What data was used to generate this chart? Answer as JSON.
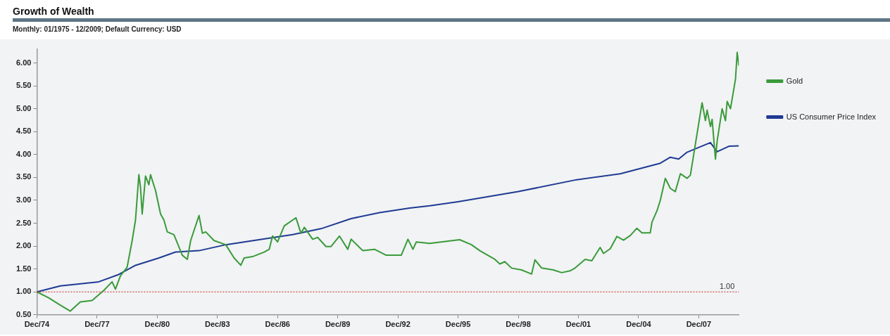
{
  "chart_data": {
    "type": "line",
    "title": "Growth of Wealth",
    "subtitle": "Monthly: 01/1975 - 12/2009; Default Currency: USD",
    "xlim": [
      "1974-12",
      "2009-12"
    ],
    "xticks": [
      {
        "value": "1974-12",
        "label": "Dec/74"
      },
      {
        "value": "1977-12",
        "label": "Dec/77"
      },
      {
        "value": "1980-12",
        "label": "Dec/80"
      },
      {
        "value": "1983-12",
        "label": "Dec/83"
      },
      {
        "value": "1986-12",
        "label": "Dec/86"
      },
      {
        "value": "1989-12",
        "label": "Dec/89"
      },
      {
        "value": "1992-12",
        "label": "Dec/92"
      },
      {
        "value": "1995-12",
        "label": "Dec/95"
      },
      {
        "value": "1998-12",
        "label": "Dec/98"
      },
      {
        "value": "2001-12",
        "label": "Dec/01"
      },
      {
        "value": "2004-12",
        "label": "Dec/04"
      },
      {
        "value": "2007-12",
        "label": "Dec/07"
      }
    ],
    "ylim": [
      0.5,
      6.3
    ],
    "yticks": [
      {
        "value": 0.5,
        "label": "0.50"
      },
      {
        "value": 1,
        "label": "1.00"
      },
      {
        "value": 1.5,
        "label": "1.50"
      },
      {
        "value": 2,
        "label": "2.00"
      },
      {
        "value": 2.5,
        "label": "2.50"
      },
      {
        "value": 3,
        "label": "3.00"
      },
      {
        "value": 3.5,
        "label": "3.50"
      },
      {
        "value": 4,
        "label": "4.00"
      },
      {
        "value": 4.5,
        "label": "4.50"
      },
      {
        "value": 5,
        "label": "5.00"
      },
      {
        "value": 5.5,
        "label": "5.50"
      },
      {
        "value": 6,
        "label": "6.00"
      }
    ],
    "grid": false,
    "legend": "right",
    "marker": "none",
    "line_style": "solid",
    "ref_lines": [
      {
        "axis": "y",
        "value": 1,
        "label": "1.00",
        "color": "#cc2222",
        "line_style": "dotted"
      }
    ],
    "series": [
      {
        "name": "Gold",
        "color": "#3a9a3a",
        "x": [
          "1974-12",
          "1975-07",
          "1976-02",
          "1976-08",
          "1977-02",
          "1977-09",
          "1978-04",
          "1978-09",
          "1978-11",
          "1979-02",
          "1979-06",
          "1979-09",
          "1979-11",
          "1980-01",
          "1980-02",
          "1980-03",
          "1980-05",
          "1980-07",
          "1980-08",
          "1980-11",
          "1981-02",
          "1981-04",
          "1981-06",
          "1981-10",
          "1982-03",
          "1982-06",
          "1982-08",
          "1983-01",
          "1983-03",
          "1983-05",
          "1983-10",
          "1984-05",
          "1984-10",
          "1985-02",
          "1985-04",
          "1985-09",
          "1986-04",
          "1986-07",
          "1986-09",
          "1986-12",
          "1987-04",
          "1987-11",
          "1988-02",
          "1988-04",
          "1988-09",
          "1988-12",
          "1989-05",
          "1989-08",
          "1990-01",
          "1990-06",
          "1990-08",
          "1991-03",
          "1991-10",
          "1992-05",
          "1993-02",
          "1993-06",
          "1993-09",
          "1993-11",
          "1994-07",
          "1996-01",
          "1996-08",
          "1997-01",
          "1997-10",
          "1998-01",
          "1998-04",
          "1998-08",
          "1999-02",
          "1999-08",
          "1999-10",
          "2000-02",
          "2000-09",
          "2001-02",
          "2001-07",
          "2001-10",
          "2002-04",
          "2002-08",
          "2003-01",
          "2003-03",
          "2003-07",
          "2003-11",
          "2004-03",
          "2004-07",
          "2004-11",
          "2005-02",
          "2005-07",
          "2005-08",
          "2005-11",
          "2006-01",
          "2006-04",
          "2006-07",
          "2006-10",
          "2007-01",
          "2007-05",
          "2007-07",
          "2007-10",
          "2008-02",
          "2008-04",
          "2008-05",
          "2008-07",
          "2008-08",
          "2008-10",
          "2008-11",
          "2009-02",
          "2009-04",
          "2009-05",
          "2009-07",
          "2009-10",
          "2009-11",
          "2009-12"
        ],
        "values": [
          1.0,
          0.87,
          0.71,
          0.58,
          0.78,
          0.81,
          1.03,
          1.22,
          1.06,
          1.35,
          1.54,
          2.12,
          2.57,
          3.56,
          3.28,
          2.7,
          3.53,
          3.34,
          3.56,
          3.21,
          2.7,
          2.57,
          2.31,
          2.25,
          1.8,
          1.71,
          2.12,
          2.67,
          2.28,
          2.31,
          2.12,
          2.03,
          1.74,
          1.58,
          1.74,
          1.77,
          1.87,
          1.93,
          2.22,
          2.09,
          2.44,
          2.62,
          2.28,
          2.41,
          2.15,
          2.19,
          1.99,
          1.99,
          2.22,
          1.93,
          2.15,
          1.9,
          1.93,
          1.8,
          1.8,
          2.15,
          1.93,
          2.09,
          2.06,
          2.14,
          2.03,
          1.9,
          1.71,
          1.61,
          1.66,
          1.52,
          1.48,
          1.39,
          1.7,
          1.52,
          1.48,
          1.42,
          1.46,
          1.52,
          1.71,
          1.68,
          1.97,
          1.84,
          1.94,
          2.21,
          2.13,
          2.23,
          2.39,
          2.29,
          2.29,
          2.52,
          2.77,
          3.0,
          3.48,
          3.26,
          3.19,
          3.58,
          3.48,
          3.55,
          4.23,
          5.13,
          4.74,
          4.97,
          4.61,
          4.77,
          3.9,
          4.29,
          5.0,
          4.74,
          5.16,
          5.0,
          5.65,
          6.23,
          5.94
        ]
      },
      {
        "name": "US Consumer Price Index",
        "color": "#1f3a93",
        "x": [
          "1974-12",
          "1976-02",
          "1978-01",
          "1979-01",
          "1979-11",
          "1981-01",
          "1981-11",
          "1983-01",
          "1984-05",
          "1986-03",
          "1987-09",
          "1989-02",
          "1990-08",
          "1992-01",
          "1993-07",
          "1994-07",
          "1995-12",
          "1998-12",
          "2001-11",
          "2004-01",
          "2006-01",
          "2006-07",
          "2006-12",
          "2007-05",
          "2008-07",
          "2008-11",
          "2009-06",
          "2009-12"
        ],
        "values": [
          1.0,
          1.13,
          1.22,
          1.38,
          1.58,
          1.74,
          1.87,
          1.9,
          2.03,
          2.15,
          2.25,
          2.38,
          2.6,
          2.73,
          2.83,
          2.88,
          2.97,
          3.19,
          3.45,
          3.58,
          3.81,
          3.94,
          3.9,
          4.05,
          4.26,
          4.06,
          4.18,
          4.19
        ]
      }
    ]
  }
}
